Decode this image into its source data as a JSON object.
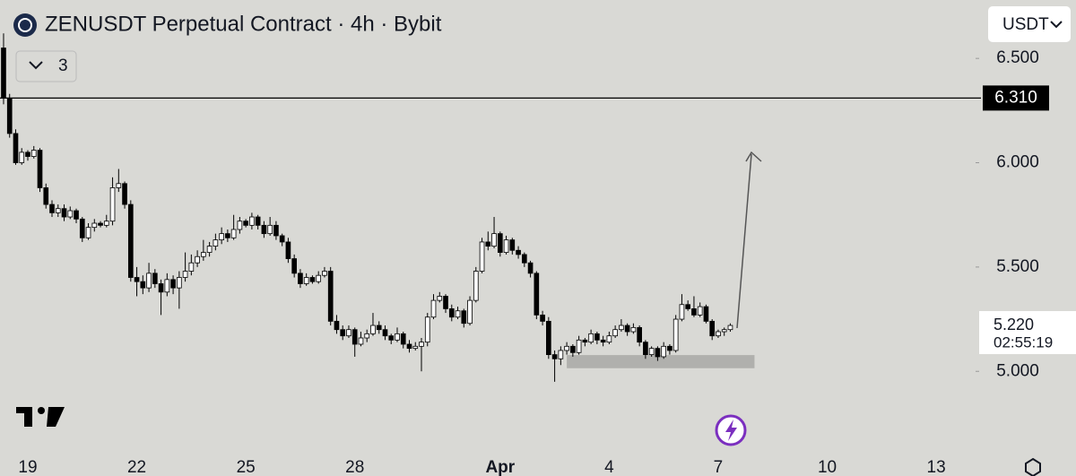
{
  "header": {
    "title": "ZENUSDT Perpetual Contract · 4h · Bybit",
    "currency": "USDT",
    "indicators": "3"
  },
  "chart_data": {
    "type": "candlestick",
    "categories": [
      null,
      null,
      null,
      null,
      "19",
      null,
      null,
      null,
      null,
      null,
      null,
      null,
      null,
      null,
      null,
      null,
      null,
      null,
      null,
      null,
      null,
      null,
      "22",
      null,
      null,
      null,
      null,
      null,
      null,
      null,
      null,
      null,
      null,
      null,
      null,
      null,
      null,
      null,
      null,
      null,
      "25",
      null,
      null,
      null,
      null,
      null,
      null,
      null,
      null,
      null,
      null,
      null,
      null,
      null,
      null,
      null,
      null,
      null,
      "28",
      null,
      null,
      null,
      null,
      null,
      null,
      null,
      null,
      null,
      null,
      null,
      null,
      null,
      null,
      null,
      null,
      null,
      null,
      null,
      null,
      null,
      null,
      null,
      "Apr",
      null,
      null,
      null,
      null,
      null,
      null,
      null,
      null,
      null,
      null,
      null,
      null,
      null,
      null,
      null,
      null,
      null,
      "4",
      null,
      null,
      null,
      null,
      null,
      null,
      null,
      null,
      null,
      null,
      null,
      null,
      null,
      null,
      null,
      null,
      null,
      "7",
      null,
      null,
      null,
      null,
      null,
      null,
      null,
      null,
      null,
      null,
      null,
      null,
      null,
      null,
      null,
      null,
      null,
      "10",
      null,
      null,
      null,
      null,
      null,
      null,
      null,
      null,
      null,
      null,
      null,
      null,
      null,
      null,
      null,
      null,
      null,
      "13",
      null,
      null,
      null,
      null,
      null,
      null
    ],
    "open": [
      6.55,
      6.31,
      6.14,
      6.0,
      6.05,
      6.03,
      6.06,
      5.88,
      5.8,
      5.76,
      5.78,
      5.74,
      5.77,
      5.73,
      5.64,
      5.69,
      5.71,
      5.7,
      5.72,
      5.88,
      5.9,
      5.8,
      5.45,
      5.43,
      5.4,
      5.47,
      5.42,
      5.38,
      5.44,
      5.4,
      5.45,
      5.48,
      5.52,
      5.55,
      5.57,
      5.6,
      5.63,
      5.66,
      5.64,
      5.68,
      5.72,
      5.7,
      5.74,
      5.7,
      5.66,
      5.7,
      5.65,
      5.62,
      5.54,
      5.47,
      5.42,
      5.45,
      5.43,
      5.46,
      5.48,
      5.24,
      5.2,
      5.17,
      5.2,
      5.13,
      5.16,
      5.18,
      5.22,
      5.2,
      5.17,
      5.15,
      5.18,
      5.13,
      5.11,
      5.12,
      5.14,
      5.26,
      5.34,
      5.36,
      5.3,
      5.26,
      5.29,
      5.23,
      5.34,
      5.48,
      5.62,
      5.6,
      5.66,
      5.57,
      5.63,
      5.58,
      5.56,
      5.52,
      5.47,
      5.27,
      5.24,
      5.08,
      5.06,
      5.1,
      5.12,
      5.09,
      5.15,
      5.14,
      5.18,
      5.15,
      5.14,
      5.17,
      5.2,
      5.22,
      5.19,
      5.21,
      5.14,
      5.08,
      5.11,
      5.07,
      5.12,
      5.1,
      5.25,
      5.32,
      5.3,
      5.27,
      5.31,
      5.24,
      5.17,
      5.19,
      5.2,
      null,
      null,
      null,
      null,
      null,
      null,
      null,
      null,
      null,
      null,
      null,
      null,
      null,
      null,
      null,
      null,
      null,
      null,
      null,
      null,
      null,
      null,
      null,
      null,
      null,
      null,
      null,
      null,
      null,
      null,
      null,
      null,
      null,
      null,
      null,
      null,
      null,
      null,
      null,
      null
    ],
    "high": [
      6.62,
      6.33,
      6.16,
      6.07,
      6.06,
      6.08,
      6.07,
      5.9,
      5.82,
      5.8,
      5.8,
      5.79,
      5.78,
      5.74,
      5.71,
      5.73,
      5.72,
      5.75,
      5.93,
      5.97,
      5.91,
      5.82,
      5.5,
      5.46,
      5.52,
      5.49,
      5.44,
      5.47,
      5.46,
      5.48,
      5.57,
      5.56,
      5.58,
      5.63,
      5.62,
      5.66,
      5.69,
      5.68,
      5.75,
      5.74,
      5.73,
      5.76,
      5.75,
      5.72,
      5.74,
      5.72,
      5.66,
      5.64,
      5.56,
      5.49,
      5.47,
      5.46,
      5.48,
      5.5,
      5.5,
      5.27,
      5.22,
      5.22,
      5.21,
      5.19,
      5.2,
      5.28,
      5.24,
      5.22,
      5.18,
      5.21,
      5.19,
      5.15,
      5.14,
      5.16,
      5.28,
      5.37,
      5.38,
      5.37,
      5.32,
      5.31,
      5.3,
      5.36,
      5.5,
      5.64,
      5.67,
      5.74,
      5.67,
      5.65,
      5.64,
      5.6,
      5.57,
      5.53,
      5.48,
      5.29,
      5.26,
      5.1,
      5.12,
      5.14,
      5.13,
      5.17,
      5.16,
      5.2,
      5.19,
      5.17,
      5.19,
      5.22,
      5.25,
      5.23,
      5.23,
      5.22,
      5.15,
      5.12,
      5.12,
      5.14,
      5.13,
      5.27,
      5.37,
      5.34,
      5.36,
      5.33,
      5.32,
      5.25,
      5.2,
      5.21,
      5.23,
      null,
      null,
      null,
      null,
      null,
      null,
      null,
      null,
      null,
      null,
      null,
      null,
      null,
      null,
      null,
      null,
      null,
      null,
      null,
      null,
      null,
      null,
      null,
      null,
      null,
      null,
      null,
      null,
      null,
      null,
      null,
      null,
      null,
      null,
      null,
      null,
      null,
      null,
      null,
      null
    ],
    "low": [
      6.28,
      6.12,
      5.99,
      5.99,
      6.01,
      6.02,
      5.86,
      5.78,
      5.74,
      5.74,
      5.72,
      5.73,
      5.71,
      5.62,
      5.63,
      5.67,
      5.69,
      5.69,
      5.7,
      5.86,
      5.78,
      5.43,
      5.36,
      5.37,
      5.38,
      5.4,
      5.27,
      5.36,
      5.37,
      5.3,
      5.43,
      5.46,
      5.5,
      5.53,
      5.55,
      5.58,
      5.61,
      5.62,
      5.63,
      5.66,
      5.69,
      5.68,
      5.68,
      5.64,
      5.65,
      5.63,
      5.6,
      5.52,
      5.45,
      5.4,
      5.41,
      5.42,
      5.42,
      5.45,
      5.22,
      5.18,
      5.15,
      5.16,
      5.07,
      5.12,
      5.14,
      5.17,
      5.18,
      5.15,
      5.13,
      5.14,
      5.11,
      5.09,
      5.1,
      5.0,
      5.12,
      5.25,
      5.33,
      5.28,
      5.24,
      5.25,
      5.21,
      5.22,
      5.33,
      5.47,
      5.58,
      5.59,
      5.55,
      5.56,
      5.56,
      5.54,
      5.5,
      5.45,
      5.25,
      5.22,
      5.06,
      4.95,
      5.03,
      5.08,
      5.07,
      5.08,
      5.12,
      5.13,
      5.13,
      5.12,
      5.13,
      5.16,
      5.19,
      5.17,
      5.18,
      5.12,
      5.06,
      5.07,
      5.05,
      5.06,
      5.08,
      5.09,
      5.24,
      5.29,
      5.26,
      5.26,
      5.23,
      5.15,
      5.16,
      5.17,
      5.19,
      null,
      null,
      null,
      null,
      null,
      null,
      null,
      null,
      null,
      null,
      null,
      null,
      null,
      null,
      null,
      null,
      null,
      null,
      null,
      null,
      null,
      null,
      null,
      null,
      null,
      null,
      null,
      null,
      null,
      null,
      null,
      null,
      null,
      null,
      null,
      null,
      null,
      null,
      null,
      null
    ],
    "close": [
      6.31,
      6.14,
      6.0,
      6.05,
      6.03,
      6.06,
      5.88,
      5.8,
      5.76,
      5.78,
      5.74,
      5.77,
      5.73,
      5.64,
      5.69,
      5.71,
      5.7,
      5.72,
      5.88,
      5.9,
      5.8,
      5.45,
      5.43,
      5.4,
      5.47,
      5.42,
      5.38,
      5.44,
      5.4,
      5.45,
      5.48,
      5.52,
      5.55,
      5.57,
      5.6,
      5.63,
      5.66,
      5.64,
      5.68,
      5.72,
      5.7,
      5.74,
      5.7,
      5.66,
      5.7,
      5.65,
      5.62,
      5.54,
      5.47,
      5.42,
      5.45,
      5.43,
      5.46,
      5.48,
      5.24,
      5.2,
      5.17,
      5.2,
      5.13,
      5.16,
      5.18,
      5.22,
      5.2,
      5.17,
      5.15,
      5.18,
      5.13,
      5.11,
      5.12,
      5.14,
      5.26,
      5.34,
      5.36,
      5.3,
      5.26,
      5.29,
      5.23,
      5.34,
      5.48,
      5.62,
      5.6,
      5.66,
      5.57,
      5.63,
      5.58,
      5.56,
      5.52,
      5.47,
      5.27,
      5.24,
      5.08,
      5.06,
      5.1,
      5.12,
      5.09,
      5.15,
      5.14,
      5.18,
      5.15,
      5.14,
      5.17,
      5.2,
      5.22,
      5.19,
      5.21,
      5.14,
      5.08,
      5.11,
      5.07,
      5.12,
      5.1,
      5.25,
      5.32,
      5.3,
      5.27,
      5.31,
      5.24,
      5.17,
      5.19,
      5.2,
      5.22,
      null,
      null,
      null,
      null,
      null,
      null,
      null,
      null,
      null,
      null,
      null,
      null,
      null,
      null,
      null,
      null,
      null,
      null,
      null,
      null,
      null,
      null,
      null,
      null,
      null,
      null,
      null,
      null,
      null,
      null,
      null,
      null,
      null,
      null,
      null,
      null,
      null,
      null,
      null,
      null
    ],
    "up_color": "#ffffff",
    "down_color": "#000000",
    "ylim": [
      4.61,
      6.78
    ],
    "yticks": [
      {
        "value": 6.5,
        "label": "6.500"
      },
      {
        "value": 6,
        "label": "6.000"
      },
      {
        "value": 5.5,
        "label": "5.500"
      },
      {
        "value": 5,
        "label": "5.000"
      }
    ],
    "hline": {
      "value": 6.31,
      "label": "6.310"
    },
    "last_price": {
      "value": 5.22,
      "label": "5.220"
    },
    "countdown": "02:55:19",
    "zone": [
      5.015,
      5.078
    ]
  }
}
